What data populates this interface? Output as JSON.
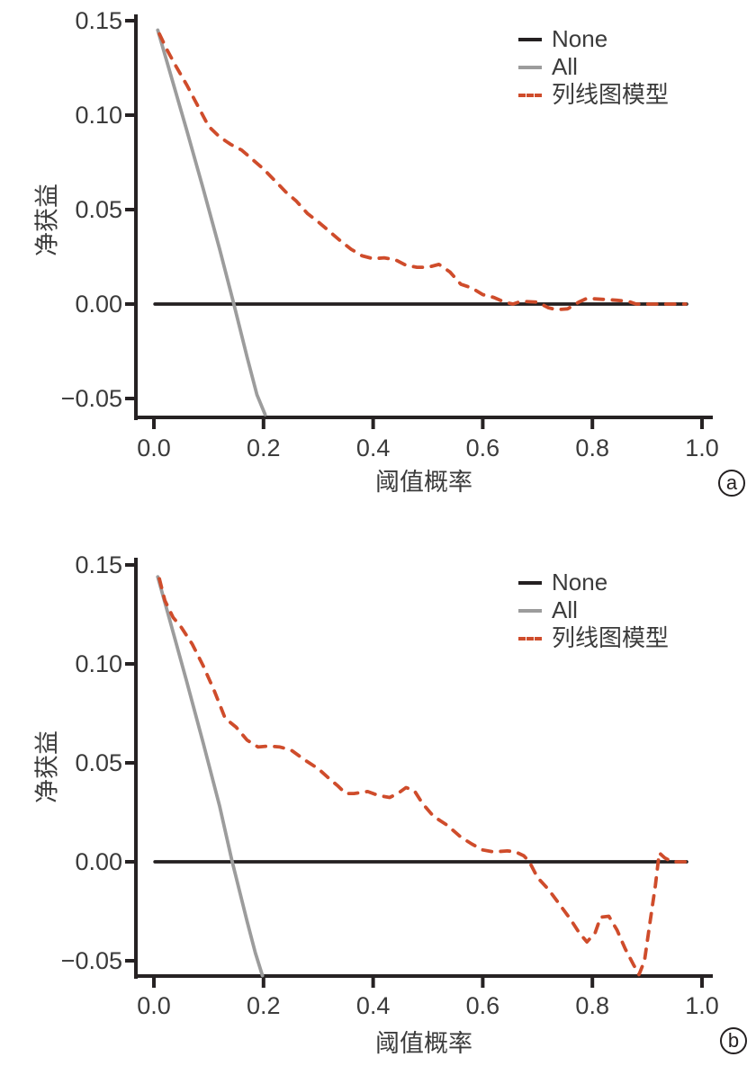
{
  "figure": {
    "background": "#ffffff"
  },
  "colors": {
    "axis": "#262223",
    "tick_text": "#3b3b3b",
    "none_line": "#242021",
    "all_line": "#9c9c9c",
    "model_line": "#cf4c2b"
  },
  "chart_data": [
    {
      "type": "line",
      "panel_tag": "a",
      "title": "",
      "xlabel": "阈值概率",
      "ylabel": "净获益",
      "xlim": [
        0.0,
        1.0
      ],
      "ylim": [
        -0.057,
        0.155
      ],
      "grid": false,
      "x_ticks": {
        "labels": [
          "0.0",
          "0.2",
          "0.4",
          "0.6",
          "0.8",
          "1.0"
        ],
        "values": [
          0.0,
          0.2,
          0.4,
          0.6,
          0.8,
          1.0
        ]
      },
      "y_ticks": {
        "labels": [
          "0.15",
          "0.10",
          "0.05",
          "0.00",
          "−0.05"
        ],
        "values": [
          0.15,
          0.1,
          0.05,
          0.0,
          -0.05
        ]
      },
      "legend": {
        "position": "top-right",
        "items": [
          {
            "label": "None",
            "color": "#242021",
            "line_style": "solid"
          },
          {
            "label": "All",
            "color": "#9c9c9c",
            "line_style": "solid"
          },
          {
            "label": "列线图模型",
            "color": "#cf4c2b",
            "line_style": "dashed"
          }
        ]
      },
      "series": [
        {
          "name": "None",
          "color": "#242021",
          "line_style": "solid",
          "points": [
            [
              0.002,
              0.0
            ],
            [
              0.972,
              0.0
            ]
          ]
        },
        {
          "name": "All",
          "color": "#9c9c9c",
          "line_style": "solid",
          "points": [
            [
              0.007,
              0.145
            ],
            [
              0.03,
              0.122
            ],
            [
              0.06,
              0.092
            ],
            [
              0.09,
              0.061
            ],
            [
              0.12,
              0.029
            ],
            [
              0.145,
              0.001
            ],
            [
              0.17,
              -0.028
            ],
            [
              0.188,
              -0.048
            ],
            [
              0.203,
              -0.0585
            ]
          ]
        },
        {
          "name": "列线图模型",
          "color": "#cf4c2b",
          "line_style": "dashed",
          "points": [
            [
              0.01,
              0.143
            ],
            [
              0.025,
              0.134
            ],
            [
              0.04,
              0.126
            ],
            [
              0.06,
              0.116
            ],
            [
              0.08,
              0.105
            ],
            [
              0.1,
              0.094
            ],
            [
              0.12,
              0.0885
            ],
            [
              0.14,
              0.0845
            ],
            [
              0.16,
              0.0815
            ],
            [
              0.18,
              0.0765
            ],
            [
              0.2,
              0.0715
            ],
            [
              0.22,
              0.0655
            ],
            [
              0.24,
              0.0595
            ],
            [
              0.26,
              0.0545
            ],
            [
              0.28,
              0.048
            ],
            [
              0.3,
              0.0435
            ],
            [
              0.32,
              0.0385
            ],
            [
              0.34,
              0.0335
            ],
            [
              0.36,
              0.029
            ],
            [
              0.38,
              0.0255
            ],
            [
              0.4,
              0.024
            ],
            [
              0.42,
              0.0245
            ],
            [
              0.44,
              0.0235
            ],
            [
              0.46,
              0.0205
            ],
            [
              0.48,
              0.0195
            ],
            [
              0.5,
              0.0195
            ],
            [
              0.52,
              0.021
            ],
            [
              0.54,
              0.017
            ],
            [
              0.56,
              0.0105
            ],
            [
              0.58,
              0.0085
            ],
            [
              0.6,
              0.005
            ],
            [
              0.62,
              0.0035
            ],
            [
              0.64,
              0.001
            ],
            [
              0.655,
              0.0
            ],
            [
              0.67,
              0.0015
            ],
            [
              0.7,
              0.001
            ],
            [
              0.72,
              -0.002
            ],
            [
              0.735,
              -0.003
            ],
            [
              0.755,
              -0.0025
            ],
            [
              0.775,
              0.001
            ],
            [
              0.79,
              0.003
            ],
            [
              0.82,
              0.0025
            ],
            [
              0.845,
              0.002
            ],
            [
              0.865,
              0.0015
            ],
            [
              0.88,
              0.0
            ],
            [
              0.92,
              0.0
            ],
            [
              0.97,
              0.0
            ]
          ]
        }
      ]
    },
    {
      "type": "line",
      "panel_tag": "b",
      "title": "",
      "xlabel": "阈值概率",
      "ylabel": "净获益",
      "xlim": [
        0.0,
        1.0
      ],
      "ylim": [
        -0.057,
        0.155
      ],
      "grid": false,
      "x_ticks": {
        "labels": [
          "0.0",
          "0.2",
          "0.4",
          "0.6",
          "0.8",
          "1.0"
        ],
        "values": [
          0.0,
          0.2,
          0.4,
          0.6,
          0.8,
          1.0
        ]
      },
      "y_ticks": {
        "labels": [
          "0.15",
          "0.10",
          "0.05",
          "0.00",
          "−0.05"
        ],
        "values": [
          0.15,
          0.1,
          0.05,
          0.0,
          -0.05
        ]
      },
      "legend": {
        "position": "top-right",
        "items": [
          {
            "label": "None",
            "color": "#242021",
            "line_style": "solid"
          },
          {
            "label": "All",
            "color": "#9c9c9c",
            "line_style": "solid"
          },
          {
            "label": "列线图模型",
            "color": "#cf4c2b",
            "line_style": "dashed"
          }
        ]
      },
      "series": [
        {
          "name": "None",
          "color": "#242021",
          "line_style": "solid",
          "points": [
            [
              0.002,
              0.0
            ],
            [
              0.972,
              0.0
            ]
          ]
        },
        {
          "name": "All",
          "color": "#9c9c9c",
          "line_style": "solid",
          "points": [
            [
              0.007,
              0.144
            ],
            [
              0.03,
              0.121
            ],
            [
              0.06,
              0.091
            ],
            [
              0.09,
              0.06
            ],
            [
              0.12,
              0.028
            ],
            [
              0.142,
              0.001
            ],
            [
              0.17,
              -0.03
            ],
            [
              0.185,
              -0.046
            ],
            [
              0.198,
              -0.0575
            ]
          ]
        },
        {
          "name": "列线图模型",
          "color": "#cf4c2b",
          "line_style": "dashed",
          "points": [
            [
              0.01,
              0.143
            ],
            [
              0.02,
              0.132
            ],
            [
              0.035,
              0.1235
            ],
            [
              0.05,
              0.1185
            ],
            [
              0.07,
              0.11
            ],
            [
              0.09,
              0.099
            ],
            [
              0.11,
              0.0865
            ],
            [
              0.13,
              0.0725
            ],
            [
              0.15,
              0.068
            ],
            [
              0.17,
              0.0615
            ],
            [
              0.19,
              0.058
            ],
            [
              0.21,
              0.0585
            ],
            [
              0.23,
              0.058
            ],
            [
              0.25,
              0.0565
            ],
            [
              0.275,
              0.0515
            ],
            [
              0.3,
              0.047
            ],
            [
              0.32,
              0.042
            ],
            [
              0.335,
              0.0385
            ],
            [
              0.35,
              0.0345
            ],
            [
              0.365,
              0.0345
            ],
            [
              0.39,
              0.0355
            ],
            [
              0.41,
              0.0335
            ],
            [
              0.43,
              0.0325
            ],
            [
              0.445,
              0.0345
            ],
            [
              0.46,
              0.0375
            ],
            [
              0.475,
              0.036
            ],
            [
              0.49,
              0.0295
            ],
            [
              0.51,
              0.023
            ],
            [
              0.535,
              0.0185
            ],
            [
              0.56,
              0.0125
            ],
            [
              0.58,
              0.009
            ],
            [
              0.6,
              0.006
            ],
            [
              0.62,
              0.005
            ],
            [
              0.645,
              0.0055
            ],
            [
              0.66,
              0.005
            ],
            [
              0.675,
              0.003
            ],
            [
              0.685,
              0.0
            ],
            [
              0.7,
              -0.008
            ],
            [
              0.72,
              -0.014
            ],
            [
              0.74,
              -0.0215
            ],
            [
              0.76,
              -0.029
            ],
            [
              0.775,
              -0.0355
            ],
            [
              0.79,
              -0.0405
            ],
            [
              0.805,
              -0.036
            ],
            [
              0.815,
              -0.028
            ],
            [
              0.83,
              -0.0275
            ],
            [
              0.845,
              -0.0345
            ],
            [
              0.86,
              -0.044
            ],
            [
              0.875,
              -0.052
            ],
            [
              0.885,
              -0.057
            ],
            [
              0.895,
              -0.05
            ],
            [
              0.905,
              -0.031
            ],
            [
              0.915,
              -0.012
            ],
            [
              0.922,
              0.0045
            ],
            [
              0.932,
              0.002
            ],
            [
              0.945,
              0.0
            ],
            [
              0.97,
              0.0
            ]
          ]
        }
      ]
    }
  ]
}
